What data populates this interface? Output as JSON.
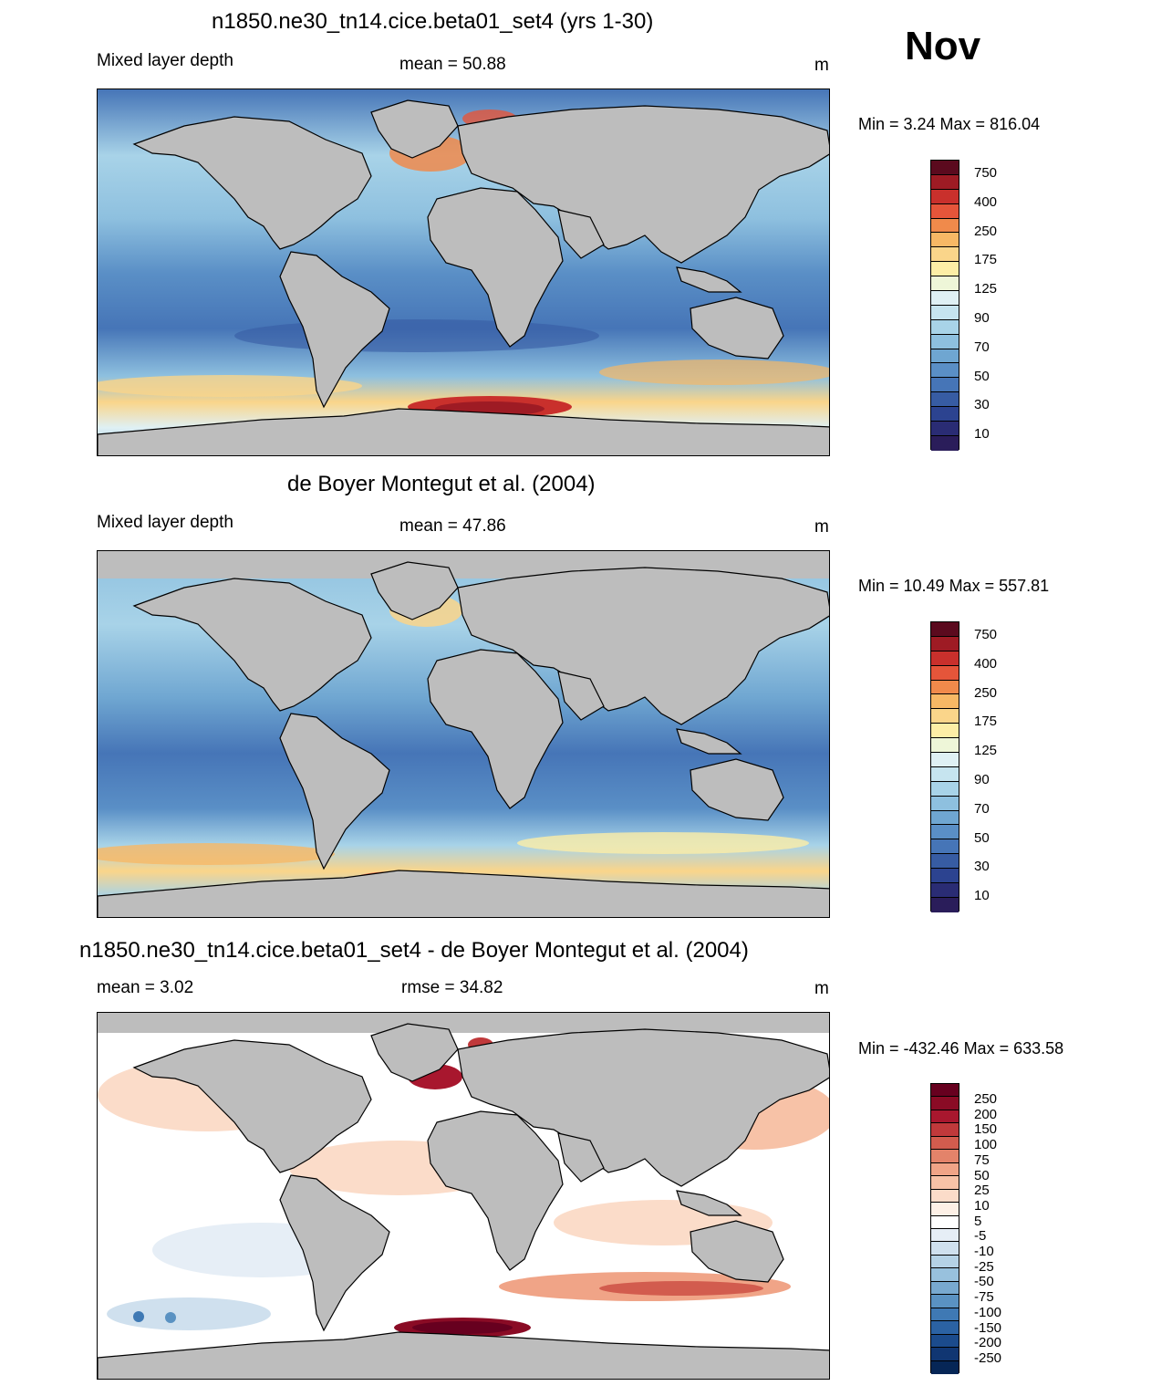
{
  "month": "Nov",
  "panels": [
    {
      "title": "n1850.ne30_tn14.cice.beta01_set4 (yrs 1-30)",
      "left_label": "Mixed layer depth",
      "center_label": "mean =  50.88",
      "units": "m",
      "minmax": "Min =   3.24 Max = 816.04"
    },
    {
      "title": "de Boyer Montegut et al. (2004)",
      "left_label": "Mixed layer depth",
      "center_label": "mean =  47.86",
      "units": "m",
      "minmax": "Min =  10.49 Max = 557.81"
    },
    {
      "title": "n1850.ne30_tn14.cice.beta01_set4 - de Boyer Montegut et al. (2004)",
      "left_label": "mean =   3.02",
      "center_label": "rmse =  34.82",
      "units": "m",
      "minmax": "Min = -432.46 Max = 633.58"
    }
  ],
  "colorbar_mld": {
    "labels": [
      "750",
      "400",
      "250",
      "175",
      "125",
      "90",
      "70",
      "50",
      "30",
      "10"
    ],
    "colors": [
      "#5b0a1e",
      "#9e1b24",
      "#c9302c",
      "#e5553a",
      "#f08a4b",
      "#f7b865",
      "#fad58a",
      "#fdeea6",
      "#eef6d8",
      "#dff0f4",
      "#c6e4ef",
      "#a8d3e8",
      "#8ec0df",
      "#6fa6d1",
      "#5a8fc6",
      "#4675b7",
      "#375ca3",
      "#2c4390",
      "#2a2c74",
      "#2a1d5a"
    ]
  },
  "colorbar_diff": {
    "labels": [
      "250",
      "200",
      "150",
      "100",
      "75",
      "50",
      "25",
      "10",
      "5",
      "-5",
      "-10",
      "-25",
      "-50",
      "-75",
      "-100",
      "-150",
      "-200",
      "-250"
    ],
    "colors": [
      "#67001f",
      "#8a0b25",
      "#a8172e",
      "#c0393b",
      "#d25c4e",
      "#e3836a",
      "#f0a487",
      "#f7c2a7",
      "#fbdcc9",
      "#fdf0e6",
      "#ffffff",
      "#e6eef6",
      "#cfe0ee",
      "#b5d2e6",
      "#98c1dd",
      "#78a9cf",
      "#5a92c2",
      "#3f79b4",
      "#2b62a3",
      "#1b4b8c",
      "#103672",
      "#062656"
    ]
  },
  "chart_data": [
    {
      "type": "heatmap",
      "title": "n1850.ne30_tn14.cice.beta01_set4 (yrs 1-30)",
      "variable": "Mixed layer depth",
      "units": "m",
      "mean": 50.88,
      "min": 3.24,
      "max": 816.04,
      "contour_levels": [
        10,
        30,
        50,
        70,
        90,
        125,
        175,
        250,
        400,
        750
      ]
    },
    {
      "type": "heatmap",
      "title": "de Boyer Montegut et al. (2004)",
      "variable": "Mixed layer depth",
      "units": "m",
      "mean": 47.86,
      "min": 10.49,
      "max": 557.81,
      "contour_levels": [
        10,
        30,
        50,
        70,
        90,
        125,
        175,
        250,
        400,
        750
      ]
    },
    {
      "type": "heatmap",
      "title": "n1850.ne30_tn14.cice.beta01_set4 - de Boyer Montegut et al. (2004)",
      "units": "m",
      "mean": 3.02,
      "rmse": 34.82,
      "min": -432.46,
      "max": 633.58,
      "contour_levels": [
        -250,
        -200,
        -150,
        -100,
        -75,
        -50,
        -25,
        -10,
        -5,
        5,
        10,
        25,
        50,
        75,
        100,
        150,
        200,
        250
      ]
    }
  ]
}
